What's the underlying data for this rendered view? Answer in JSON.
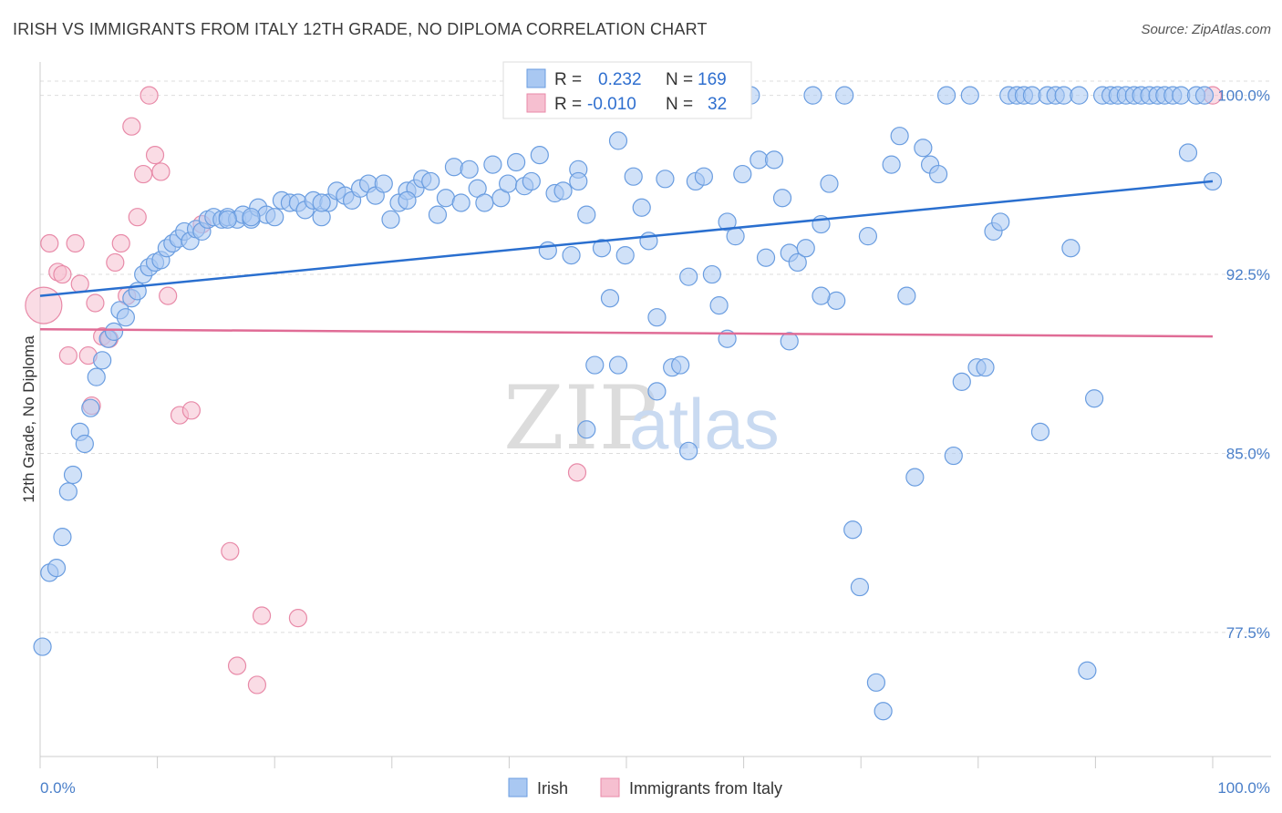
{
  "header": {
    "title": "IRISH VS IMMIGRANTS FROM ITALY 12TH GRADE, NO DIPLOMA CORRELATION CHART",
    "source": "Source: ZipAtlas.com"
  },
  "watermark": {
    "zip": "ZIP",
    "atlas": "atlas"
  },
  "colors": {
    "irish_fill": "#a9c8f2",
    "irish_stroke": "#6a9de0",
    "irish_line": "#2a6fcf",
    "italy_fill": "#f6bfd0",
    "italy_stroke": "#e88aa8",
    "italy_line": "#e06c96",
    "tick_text": "#4a7fc9",
    "grid": "#dddddd"
  },
  "legend": {
    "rows": [
      {
        "r_label": "R =",
        "r_value": "0.232",
        "n_label": "N =",
        "n_value": "169"
      },
      {
        "r_label": "R =",
        "r_value": "-0.010",
        "n_label": "N =",
        "n_value": "32"
      }
    ]
  },
  "chart_data": {
    "type": "scatter",
    "xlabel": "",
    "ylabel": "12th Grade, No Diploma",
    "x_tick_labels": [
      "0.0%",
      "100.0%"
    ],
    "y_tick_labels": [
      "100.0%",
      "92.5%",
      "85.0%",
      "77.5%"
    ],
    "y_ticks": [
      100.0,
      92.5,
      85.0,
      77.5
    ],
    "xlim": [
      0,
      100
    ],
    "ylim": [
      72.3,
      101.4
    ],
    "legend_position": "top-center",
    "series": [
      {
        "name": "Irish",
        "color": "#a9c8f2",
        "trend": {
          "x": [
            0,
            100
          ],
          "y": [
            91.6,
            96.4
          ]
        },
        "points": [
          [
            0.2,
            76.9
          ],
          [
            0.8,
            80.0
          ],
          [
            1.4,
            80.2
          ],
          [
            1.9,
            81.5
          ],
          [
            2.4,
            83.4
          ],
          [
            2.8,
            84.1
          ],
          [
            3.4,
            85.9
          ],
          [
            3.8,
            85.4
          ],
          [
            4.3,
            86.9
          ],
          [
            4.8,
            88.2
          ],
          [
            5.3,
            88.9
          ],
          [
            5.8,
            89.8
          ],
          [
            6.3,
            90.1
          ],
          [
            6.8,
            91.0
          ],
          [
            7.3,
            90.7
          ],
          [
            7.8,
            91.5
          ],
          [
            8.3,
            91.8
          ],
          [
            8.8,
            92.5
          ],
          [
            9.3,
            92.8
          ],
          [
            9.8,
            93.0
          ],
          [
            10.3,
            93.1
          ],
          [
            10.8,
            93.6
          ],
          [
            11.3,
            93.8
          ],
          [
            11.8,
            94.0
          ],
          [
            12.3,
            94.3
          ],
          [
            12.8,
            93.9
          ],
          [
            13.3,
            94.4
          ],
          [
            13.8,
            94.3
          ],
          [
            14.3,
            94.8
          ],
          [
            14.8,
            94.9
          ],
          [
            15.5,
            94.8
          ],
          [
            16.0,
            94.9
          ],
          [
            16.8,
            94.8
          ],
          [
            17.3,
            95.0
          ],
          [
            18.0,
            94.8
          ],
          [
            18.6,
            95.3
          ],
          [
            19.3,
            95.0
          ],
          [
            20.0,
            94.9
          ],
          [
            20.6,
            95.6
          ],
          [
            21.3,
            95.5
          ],
          [
            22.0,
            95.5
          ],
          [
            22.6,
            95.2
          ],
          [
            23.3,
            95.6
          ],
          [
            24.0,
            94.9
          ],
          [
            24.6,
            95.5
          ],
          [
            25.3,
            96.0
          ],
          [
            26.0,
            95.8
          ],
          [
            26.6,
            95.6
          ],
          [
            27.3,
            96.1
          ],
          [
            28.0,
            96.3
          ],
          [
            28.6,
            95.8
          ],
          [
            29.3,
            96.3
          ],
          [
            29.9,
            94.8
          ],
          [
            30.6,
            95.5
          ],
          [
            31.3,
            96.0
          ],
          [
            32.0,
            96.1
          ],
          [
            32.6,
            96.5
          ],
          [
            33.3,
            96.4
          ],
          [
            33.9,
            95.0
          ],
          [
            34.6,
            95.7
          ],
          [
            35.3,
            97.0
          ],
          [
            35.9,
            95.5
          ],
          [
            36.6,
            96.9
          ],
          [
            37.3,
            96.1
          ],
          [
            37.9,
            95.5
          ],
          [
            38.6,
            97.1
          ],
          [
            39.3,
            95.7
          ],
          [
            39.9,
            96.3
          ],
          [
            40.6,
            97.2
          ],
          [
            41.3,
            96.2
          ],
          [
            41.9,
            96.4
          ],
          [
            42.6,
            97.5
          ],
          [
            43.3,
            93.5
          ],
          [
            43.9,
            95.9
          ],
          [
            44.6,
            96.0
          ],
          [
            45.3,
            93.3
          ],
          [
            45.9,
            96.9
          ],
          [
            46.6,
            95.0
          ],
          [
            47.3,
            88.7
          ],
          [
            47.9,
            93.6
          ],
          [
            48.6,
            91.5
          ],
          [
            49.3,
            98.1
          ],
          [
            49.9,
            93.3
          ],
          [
            50.6,
            96.6
          ],
          [
            51.3,
            95.3
          ],
          [
            51.9,
            93.9
          ],
          [
            52.6,
            90.7
          ],
          [
            53.3,
            96.5
          ],
          [
            53.9,
            88.6
          ],
          [
            54.6,
            88.7
          ],
          [
            55.3,
            92.4
          ],
          [
            55.9,
            96.4
          ],
          [
            56.6,
            96.6
          ],
          [
            57.3,
            92.5
          ],
          [
            57.9,
            91.2
          ],
          [
            58.6,
            94.7
          ],
          [
            59.3,
            94.1
          ],
          [
            59.9,
            96.7
          ],
          [
            60.6,
            100.0
          ],
          [
            61.3,
            97.3
          ],
          [
            61.9,
            93.2
          ],
          [
            62.6,
            97.3
          ],
          [
            63.3,
            95.7
          ],
          [
            63.9,
            93.4
          ],
          [
            64.6,
            93.0
          ],
          [
            65.3,
            93.6
          ],
          [
            65.9,
            100.0
          ],
          [
            66.6,
            94.6
          ],
          [
            67.3,
            96.3
          ],
          [
            67.9,
            91.4
          ],
          [
            68.6,
            100.0
          ],
          [
            69.3,
            81.8
          ],
          [
            69.9,
            79.4
          ],
          [
            70.6,
            94.1
          ],
          [
            71.3,
            75.4
          ],
          [
            71.9,
            74.2
          ],
          [
            72.6,
            97.1
          ],
          [
            73.3,
            98.3
          ],
          [
            73.9,
            91.6
          ],
          [
            74.6,
            84.0
          ],
          [
            75.3,
            97.8
          ],
          [
            75.9,
            97.1
          ],
          [
            76.6,
            96.7
          ],
          [
            77.3,
            100.0
          ],
          [
            77.9,
            84.9
          ],
          [
            78.6,
            88.0
          ],
          [
            79.3,
            100.0
          ],
          [
            79.9,
            88.6
          ],
          [
            80.6,
            88.6
          ],
          [
            81.3,
            94.3
          ],
          [
            81.9,
            94.7
          ],
          [
            82.6,
            100.0
          ],
          [
            83.3,
            100.0
          ],
          [
            83.9,
            100.0
          ],
          [
            84.6,
            100.0
          ],
          [
            85.3,
            85.9
          ],
          [
            85.9,
            100.0
          ],
          [
            86.6,
            100.0
          ],
          [
            87.3,
            100.0
          ],
          [
            87.9,
            93.6
          ],
          [
            88.6,
            100.0
          ],
          [
            89.3,
            75.9
          ],
          [
            89.9,
            87.3
          ],
          [
            90.6,
            100.0
          ],
          [
            91.3,
            100.0
          ],
          [
            91.9,
            100.0
          ],
          [
            92.6,
            100.0
          ],
          [
            93.3,
            100.0
          ],
          [
            93.9,
            100.0
          ],
          [
            94.6,
            100.0
          ],
          [
            95.3,
            100.0
          ],
          [
            95.9,
            100.0
          ],
          [
            96.6,
            100.0
          ],
          [
            97.3,
            100.0
          ],
          [
            97.9,
            97.6
          ],
          [
            98.6,
            100.0
          ],
          [
            99.3,
            100.0
          ],
          [
            100.0,
            96.4
          ],
          [
            45.9,
            96.4
          ],
          [
            18.0,
            94.9
          ],
          [
            24.0,
            95.5
          ],
          [
            16.0,
            94.8
          ],
          [
            31.3,
            95.6
          ],
          [
            52.6,
            87.6
          ],
          [
            58.6,
            89.8
          ],
          [
            63.9,
            89.7
          ],
          [
            66.6,
            91.6
          ],
          [
            55.3,
            85.1
          ],
          [
            46.6,
            86.0
          ],
          [
            49.3,
            88.7
          ]
        ]
      },
      {
        "name": "Immigrants from Italy",
        "color": "#f6bfd0",
        "trend": {
          "x": [
            0,
            100
          ],
          "y": [
            90.2,
            89.9
          ]
        },
        "points": [
          [
            0.3,
            91.2
          ],
          [
            0.8,
            93.8
          ],
          [
            1.5,
            92.6
          ],
          [
            1.9,
            92.5
          ],
          [
            2.4,
            89.1
          ],
          [
            3.0,
            93.8
          ],
          [
            3.4,
            92.1
          ],
          [
            4.1,
            89.1
          ],
          [
            4.4,
            87.0
          ],
          [
            4.7,
            91.3
          ],
          [
            5.3,
            89.9
          ],
          [
            5.9,
            89.8
          ],
          [
            6.4,
            93.0
          ],
          [
            6.9,
            93.8
          ],
          [
            7.4,
            91.6
          ],
          [
            7.8,
            98.7
          ],
          [
            8.3,
            94.9
          ],
          [
            8.8,
            96.7
          ],
          [
            9.3,
            100.0
          ],
          [
            9.8,
            97.5
          ],
          [
            10.3,
            96.8
          ],
          [
            10.9,
            91.6
          ],
          [
            11.9,
            86.6
          ],
          [
            12.9,
            86.8
          ],
          [
            13.8,
            94.6
          ],
          [
            16.2,
            80.9
          ],
          [
            16.8,
            76.1
          ],
          [
            18.5,
            75.3
          ],
          [
            18.9,
            78.2
          ],
          [
            22.0,
            78.1
          ],
          [
            45.8,
            84.2
          ],
          [
            100.0,
            100.0
          ]
        ]
      }
    ]
  },
  "bottom_legend": {
    "irish": "Irish",
    "italy": "Immigrants from Italy"
  }
}
